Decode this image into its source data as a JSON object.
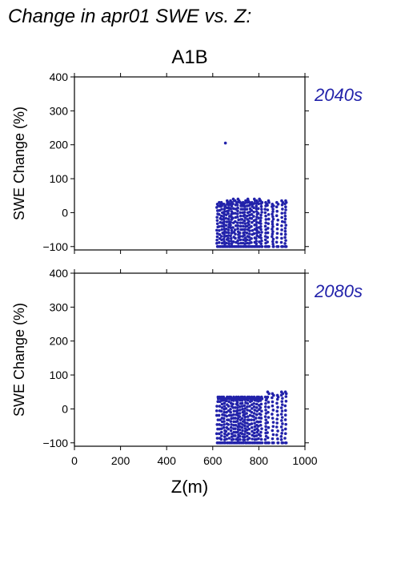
{
  "figure": {
    "title": "Change in apr01 SWE vs. Z:",
    "scenario": "A1B",
    "point_color": "#2222aa",
    "period_color": "#2222aa"
  },
  "chart_data": [
    {
      "type": "scatter",
      "period_label": "2040s",
      "ylabel": "SWE Change (%)",
      "xlabel": "",
      "xlim": [
        0,
        1000
      ],
      "ylim": [
        -110,
        400
      ],
      "yticks": [
        "400",
        "300",
        "200",
        "100",
        "0",
        "−100"
      ],
      "x_columns": [
        620,
        630,
        640,
        650,
        660,
        670,
        680,
        690,
        700,
        710,
        720,
        730,
        740,
        750,
        760,
        770,
        780,
        790,
        800,
        810,
        830,
        840,
        860,
        880,
        900,
        915
      ],
      "y_min": -100,
      "y_max": [
        25,
        30,
        30,
        25,
        35,
        30,
        35,
        40,
        35,
        40,
        30,
        30,
        35,
        40,
        30,
        30,
        40,
        35,
        40,
        35,
        30,
        35,
        25,
        30,
        35,
        35
      ],
      "outliers": [
        [
          655,
          205
        ]
      ]
    },
    {
      "type": "scatter",
      "period_label": "2080s",
      "ylabel": "SWE Change (%)",
      "xlabel": "Z(m)",
      "xlim": [
        0,
        1000
      ],
      "ylim": [
        -110,
        400
      ],
      "xticks": [
        "0",
        "200",
        "400",
        "600",
        "800",
        "1000"
      ],
      "yticks": [
        "400",
        "300",
        "200",
        "100",
        "0",
        "−100"
      ],
      "x_columns": [
        620,
        630,
        640,
        650,
        660,
        670,
        680,
        690,
        700,
        710,
        720,
        730,
        740,
        750,
        760,
        770,
        780,
        790,
        800,
        810,
        830,
        840,
        860,
        880,
        900,
        915
      ],
      "y_min": -100,
      "y_max": [
        35,
        35,
        35,
        35,
        35,
        35,
        35,
        35,
        35,
        35,
        35,
        35,
        35,
        35,
        35,
        35,
        35,
        35,
        35,
        35,
        35,
        50,
        45,
        40,
        50,
        50
      ],
      "outliers": []
    }
  ]
}
